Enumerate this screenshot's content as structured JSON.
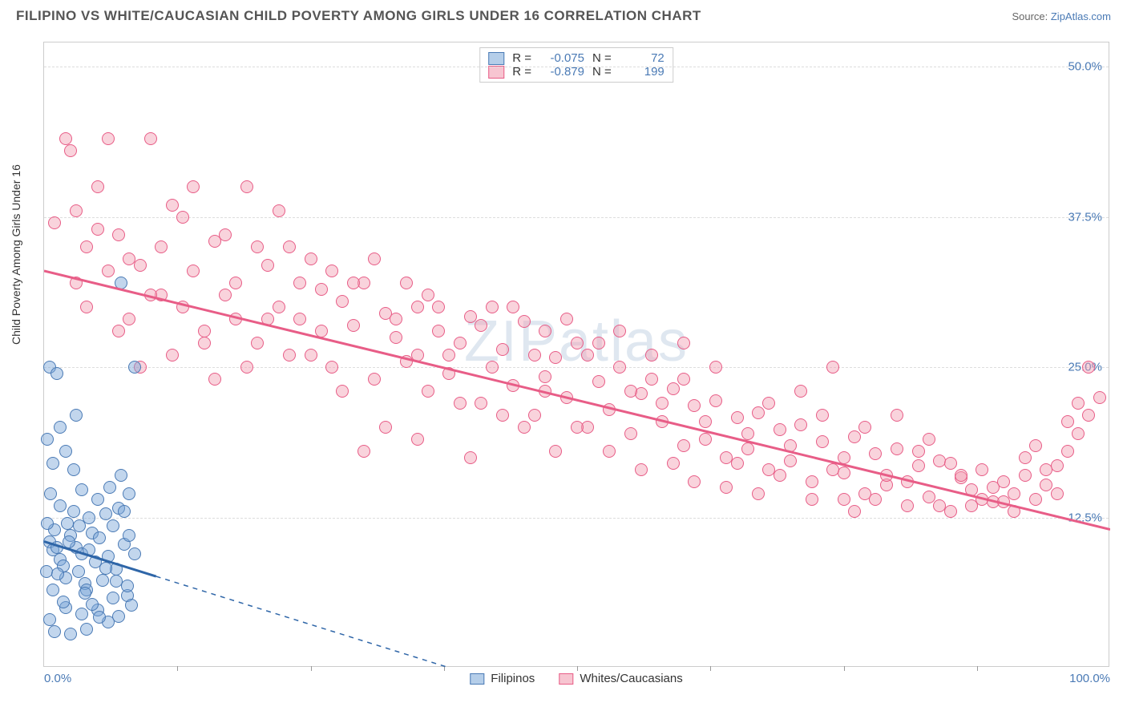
{
  "header": {
    "title": "FILIPINO VS WHITE/CAUCASIAN CHILD POVERTY AMONG GIRLS UNDER 16 CORRELATION CHART",
    "source_prefix": "Source: ",
    "source_link": "ZipAtlas.com"
  },
  "chart": {
    "watermark": "ZIPatlas",
    "y_axis_label": "Child Poverty Among Girls Under 16",
    "xlim": [
      0,
      100
    ],
    "ylim": [
      0,
      52
    ],
    "y_ticks": [
      {
        "v": 12.5,
        "label": "12.5%"
      },
      {
        "v": 25.0,
        "label": "25.0%"
      },
      {
        "v": 37.5,
        "label": "37.5%"
      },
      {
        "v": 50.0,
        "label": "50.0%"
      }
    ],
    "x_ticks_minor": [
      12.5,
      25,
      37.5,
      50,
      62.5,
      75,
      87.5
    ],
    "x_tick_labels": [
      {
        "v": 0,
        "label": "0.0%"
      },
      {
        "v": 100,
        "label": "100.0%"
      }
    ],
    "background_color": "#ffffff",
    "grid_color": "#dddddd",
    "point_radius": 8,
    "series": {
      "filipinos": {
        "label": "Filipinos",
        "fill": "rgba(120,165,215,0.45)",
        "stroke": "#4a7ab5",
        "legend_fill": "rgba(120,165,215,0.55)",
        "R": "-0.075",
        "N": "72",
        "trend": {
          "x1": 0,
          "y1": 10.5,
          "x2": 38,
          "y2": 0,
          "dash_from_x": 10.5,
          "color": "#2f66a8",
          "width": 3
        },
        "points": [
          [
            0.5,
            10.5
          ],
          [
            0.8,
            9.8
          ],
          [
            1,
            11.5
          ],
          [
            1.2,
            10
          ],
          [
            1.5,
            9
          ],
          [
            1.8,
            8.5
          ],
          [
            2,
            7.5
          ],
          [
            2.2,
            12
          ],
          [
            2.5,
            11
          ],
          [
            2.8,
            13
          ],
          [
            3,
            10
          ],
          [
            3.2,
            8
          ],
          [
            3.5,
            9.5
          ],
          [
            3.8,
            7
          ],
          [
            4,
            6.5
          ],
          [
            4.2,
            12.5
          ],
          [
            4.5,
            11.2
          ],
          [
            4.8,
            8.8
          ],
          [
            5,
            14
          ],
          [
            5.2,
            10.8
          ],
          [
            5.5,
            7.3
          ],
          [
            5.8,
            12.8
          ],
          [
            6,
            9.3
          ],
          [
            6.2,
            15
          ],
          [
            6.5,
            11.8
          ],
          [
            6.8,
            8.2
          ],
          [
            7,
            13.3
          ],
          [
            7.2,
            16
          ],
          [
            7.5,
            10.3
          ],
          [
            7.8,
            6
          ],
          [
            8,
            14.5
          ],
          [
            0.3,
            19
          ],
          [
            1.5,
            20
          ],
          [
            2,
            18
          ],
          [
            0.8,
            17
          ],
          [
            3,
            21
          ],
          [
            0.5,
            4
          ],
          [
            1,
            3
          ],
          [
            2,
            5
          ],
          [
            3.5,
            4.5
          ],
          [
            4,
            3.2
          ],
          [
            5,
            4.8
          ],
          [
            6,
            3.8
          ],
          [
            2.5,
            2.8
          ],
          [
            1.8,
            5.5
          ],
          [
            0.5,
            25
          ],
          [
            1.2,
            24.5
          ],
          [
            8.5,
            25
          ],
          [
            3.8,
            6.2
          ],
          [
            4.5,
            5.3
          ],
          [
            5.2,
            4.2
          ],
          [
            6.5,
            5.8
          ],
          [
            7,
            4.3
          ],
          [
            7.8,
            6.8
          ],
          [
            8.2,
            5.2
          ],
          [
            0.2,
            8
          ],
          [
            0.8,
            6.5
          ],
          [
            1.5,
            13.5
          ],
          [
            2.8,
            16.5
          ],
          [
            3.5,
            14.8
          ],
          [
            4.2,
            9.8
          ],
          [
            5.8,
            8.3
          ],
          [
            6.8,
            7.2
          ],
          [
            7.5,
            13
          ],
          [
            8,
            11
          ],
          [
            8.5,
            9.5
          ],
          [
            7.2,
            32
          ],
          [
            0.3,
            12
          ],
          [
            0.6,
            14.5
          ],
          [
            1.3,
            7.8
          ],
          [
            2.3,
            10.5
          ],
          [
            3.3,
            11.8
          ]
        ]
      },
      "whites": {
        "label": "Whites/Caucasians",
        "fill": "rgba(242,158,178,0.45)",
        "stroke": "#e85d87",
        "legend_fill": "rgba(242,158,178,0.6)",
        "R": "-0.879",
        "N": "199",
        "trend": {
          "x1": 0,
          "y1": 33,
          "x2": 100,
          "y2": 11.5,
          "color": "#e85d87",
          "width": 3
        },
        "points": [
          [
            1,
            37
          ],
          [
            2,
            44
          ],
          [
            2.5,
            43
          ],
          [
            3,
            38
          ],
          [
            4,
            35
          ],
          [
            5,
            40
          ],
          [
            6,
            33
          ],
          [
            7,
            36
          ],
          [
            8,
            34
          ],
          [
            9,
            33.5
          ],
          [
            10,
            44
          ],
          [
            11,
            35
          ],
          [
            12,
            38.5
          ],
          [
            13,
            30
          ],
          [
            14,
            33
          ],
          [
            15,
            28
          ],
          [
            16,
            35.5
          ],
          [
            17,
            31
          ],
          [
            18,
            32
          ],
          [
            19,
            40
          ],
          [
            20,
            27
          ],
          [
            21,
            33.5
          ],
          [
            22,
            30
          ],
          [
            23,
            26
          ],
          [
            24,
            29
          ],
          [
            25,
            34
          ],
          [
            26,
            31.5
          ],
          [
            27,
            25
          ],
          [
            28,
            30.5
          ],
          [
            29,
            28.5
          ],
          [
            30,
            32
          ],
          [
            31,
            24
          ],
          [
            32,
            29.5
          ],
          [
            33,
            27.5
          ],
          [
            34,
            25.5
          ],
          [
            35,
            30
          ],
          [
            36,
            23
          ],
          [
            37,
            28
          ],
          [
            38,
            24.5
          ],
          [
            39,
            27
          ],
          [
            40,
            29.2
          ],
          [
            41,
            22
          ],
          [
            42,
            25
          ],
          [
            43,
            26.5
          ],
          [
            44,
            23.5
          ],
          [
            45,
            28.8
          ],
          [
            46,
            21
          ],
          [
            47,
            24.2
          ],
          [
            48,
            25.8
          ],
          [
            49,
            22.5
          ],
          [
            50,
            27
          ],
          [
            51,
            20
          ],
          [
            52,
            23.8
          ],
          [
            53,
            21.5
          ],
          [
            54,
            25
          ],
          [
            55,
            19.5
          ],
          [
            56,
            22.8
          ],
          [
            57,
            24
          ],
          [
            58,
            20.5
          ],
          [
            59,
            23.2
          ],
          [
            60,
            18.5
          ],
          [
            61,
            21.8
          ],
          [
            62,
            19
          ],
          [
            63,
            22.2
          ],
          [
            64,
            17.5
          ],
          [
            65,
            20.8
          ],
          [
            66,
            18.2
          ],
          [
            67,
            21.2
          ],
          [
            68,
            16.5
          ],
          [
            69,
            19.8
          ],
          [
            70,
            17.2
          ],
          [
            71,
            20.2
          ],
          [
            72,
            15.5
          ],
          [
            73,
            18.8
          ],
          [
            74,
            25
          ],
          [
            75,
            16.2
          ],
          [
            76,
            19.2
          ],
          [
            77,
            14.5
          ],
          [
            78,
            17.8
          ],
          [
            79,
            15.2
          ],
          [
            80,
            18.2
          ],
          [
            81,
            13.5
          ],
          [
            82,
            16.8
          ],
          [
            83,
            14.2
          ],
          [
            84,
            17.2
          ],
          [
            85,
            13
          ],
          [
            86,
            15.8
          ],
          [
            87,
            14.8
          ],
          [
            88,
            16.5
          ],
          [
            89,
            13.8
          ],
          [
            90,
            15.5
          ],
          [
            91,
            14.5
          ],
          [
            92,
            16
          ],
          [
            93,
            14
          ],
          [
            94,
            15.2
          ],
          [
            95,
            16.8
          ],
          [
            96,
            18
          ],
          [
            97,
            19.5
          ],
          [
            98,
            21
          ],
          [
            99,
            22.5
          ],
          [
            8,
            29
          ],
          [
            12,
            26
          ],
          [
            16,
            24
          ],
          [
            20,
            35
          ],
          [
            24,
            32
          ],
          [
            28,
            23
          ],
          [
            32,
            20
          ],
          [
            36,
            31
          ],
          [
            40,
            17.5
          ],
          [
            44,
            30
          ],
          [
            48,
            18
          ],
          [
            52,
            27
          ],
          [
            56,
            16.5
          ],
          [
            60,
            24
          ],
          [
            64,
            15
          ],
          [
            68,
            22
          ],
          [
            72,
            14
          ],
          [
            76,
            13
          ],
          [
            80,
            21
          ],
          [
            84,
            13.5
          ],
          [
            88,
            14
          ],
          [
            92,
            17.5
          ],
          [
            96,
            20.5
          ],
          [
            4,
            30
          ],
          [
            7,
            28
          ],
          [
            11,
            31
          ],
          [
            15,
            27
          ],
          [
            19,
            25
          ],
          [
            23,
            35
          ],
          [
            27,
            33
          ],
          [
            31,
            34
          ],
          [
            35,
            26
          ],
          [
            39,
            22
          ],
          [
            43,
            21
          ],
          [
            47,
            28
          ],
          [
            51,
            26
          ],
          [
            55,
            23
          ],
          [
            59,
            17
          ],
          [
            63,
            25
          ],
          [
            67,
            14.5
          ],
          [
            71,
            23
          ],
          [
            75,
            14
          ],
          [
            79,
            16
          ],
          [
            83,
            19
          ],
          [
            87,
            13.5
          ],
          [
            91,
            13
          ],
          [
            95,
            14.5
          ],
          [
            3,
            32
          ],
          [
            6,
            44
          ],
          [
            9,
            25
          ],
          [
            13,
            37.5
          ],
          [
            17,
            36
          ],
          [
            21,
            29
          ],
          [
            25,
            26
          ],
          [
            29,
            32
          ],
          [
            33,
            29
          ],
          [
            37,
            30
          ],
          [
            41,
            28.5
          ],
          [
            45,
            20
          ],
          [
            49,
            29
          ],
          [
            53,
            18
          ],
          [
            57,
            26
          ],
          [
            61,
            15.5
          ],
          [
            65,
            17
          ],
          [
            69,
            16
          ],
          [
            73,
            21
          ],
          [
            77,
            20
          ],
          [
            81,
            15.5
          ],
          [
            85,
            17
          ],
          [
            89,
            15
          ],
          [
            93,
            18.5
          ],
          [
            97,
            22
          ],
          [
            30,
            18
          ],
          [
            42,
            30
          ],
          [
            98,
            25
          ],
          [
            5,
            36.5
          ],
          [
            14,
            40
          ],
          [
            18,
            29
          ],
          [
            22,
            38
          ],
          [
            26,
            28
          ],
          [
            34,
            32
          ],
          [
            38,
            26
          ],
          [
            46,
            26
          ],
          [
            50,
            20
          ],
          [
            54,
            28
          ],
          [
            58,
            22
          ],
          [
            62,
            20.5
          ],
          [
            66,
            19.5
          ],
          [
            70,
            18.5
          ],
          [
            74,
            16.5
          ],
          [
            78,
            14
          ],
          [
            82,
            18
          ],
          [
            86,
            16
          ],
          [
            90,
            13.8
          ],
          [
            94,
            16.5
          ],
          [
            10,
            31
          ],
          [
            35,
            19
          ],
          [
            47,
            23
          ],
          [
            60,
            27
          ],
          [
            75,
            17.5
          ]
        ]
      }
    }
  },
  "legend_top": {
    "r_label": "R =",
    "n_label": "N ="
  }
}
